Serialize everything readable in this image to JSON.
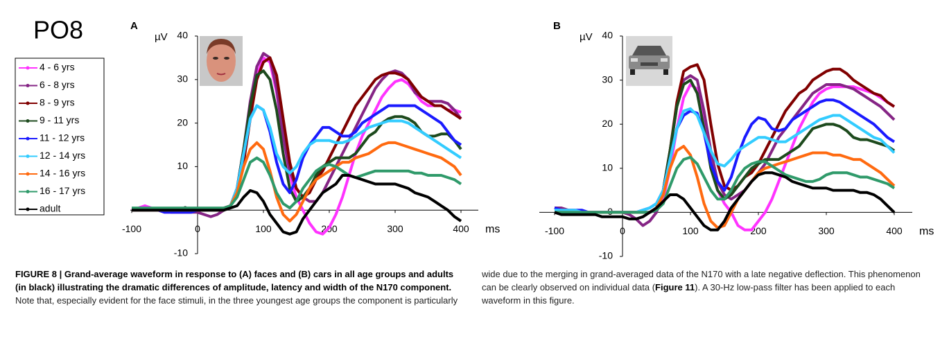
{
  "figure_label": "PO8",
  "chart_data": [
    {
      "type": "line",
      "title": "A",
      "y_label": "µV",
      "x_label": "ms",
      "x": [
        -100,
        -90,
        -80,
        -70,
        -60,
        -50,
        -40,
        -30,
        -20,
        -10,
        0,
        10,
        20,
        30,
        40,
        50,
        60,
        70,
        80,
        90,
        100,
        110,
        120,
        130,
        140,
        150,
        160,
        170,
        180,
        190,
        200,
        210,
        220,
        230,
        240,
        250,
        260,
        270,
        280,
        290,
        300,
        310,
        320,
        330,
        340,
        350,
        360,
        370,
        380,
        390,
        400
      ],
      "xlim": [
        -100,
        400
      ],
      "xticks": [
        -100,
        0,
        100,
        200,
        300,
        400
      ],
      "ylim": [
        -10,
        40
      ],
      "yticks": [
        -10,
        0,
        10,
        20,
        30,
        40
      ],
      "series": [
        {
          "name": "4 - 6 yrs",
          "color": "#ff33ff",
          "values": [
            0,
            0.5,
            1,
            0.5,
            0,
            -0.5,
            -0.5,
            -0.5,
            -0.5,
            -0.5,
            0,
            0,
            0,
            0,
            0.5,
            1,
            4,
            12,
            22,
            31,
            35,
            34,
            27,
            17,
            8,
            3,
            0,
            -3,
            -5,
            -5.5,
            -4,
            -1,
            3,
            8,
            13,
            17,
            20,
            23,
            26,
            28,
            29.5,
            30,
            29,
            27,
            25,
            24,
            24,
            24,
            23,
            23,
            22.5
          ]
        },
        {
          "name": "6 - 8 yrs",
          "color": "#852585",
          "values": [
            0,
            0,
            0,
            0,
            0,
            0,
            -0.5,
            -0.5,
            -0.5,
            -0.5,
            -0.5,
            -1,
            -1.5,
            -1,
            0,
            1,
            5,
            14,
            25,
            33,
            36,
            35,
            28,
            17,
            9,
            5,
            3,
            2,
            2,
            4,
            7,
            10,
            13,
            16,
            19,
            22,
            25,
            28,
            30,
            31.5,
            32,
            31.5,
            30,
            27,
            26,
            25,
            25,
            25,
            24.5,
            23,
            21
          ]
        },
        {
          "name": "8 - 9 yrs",
          "color": "#800000",
          "values": [
            0,
            0,
            0,
            0,
            0,
            0,
            0,
            0,
            0,
            0,
            0,
            0,
            0,
            0,
            0.5,
            1,
            4,
            11,
            21,
            30,
            34,
            35,
            31,
            21,
            11,
            5,
            3,
            4,
            7,
            9,
            12,
            15,
            18,
            21,
            24,
            26,
            28,
            30,
            31,
            31.5,
            31.5,
            31,
            30,
            28,
            26,
            25,
            24,
            24,
            23,
            22,
            21
          ]
        },
        {
          "name": "9 - 11 yrs",
          "color": "#1d4a1d",
          "values": [
            0,
            0,
            0,
            0,
            0,
            0,
            0,
            0,
            0,
            0,
            0,
            0,
            0,
            0,
            0,
            1,
            5,
            14,
            24,
            31,
            32,
            30,
            23,
            13,
            5,
            2,
            3,
            5,
            8,
            10,
            11,
            12,
            12,
            12,
            13,
            15,
            17,
            18,
            20,
            21,
            21.5,
            21.5,
            21,
            20,
            18,
            17,
            17,
            17.5,
            17.5,
            16,
            14
          ]
        },
        {
          "name": "11 - 12 yrs",
          "color": "#1a1aff",
          "values": [
            0,
            0,
            0,
            0,
            0,
            -0.5,
            -0.5,
            -0.5,
            -0.5,
            -0.5,
            0,
            0,
            0,
            0,
            0,
            1,
            5,
            13,
            21,
            24,
            23,
            18,
            11,
            6,
            4,
            7,
            12,
            15,
            17,
            19,
            19,
            18,
            17,
            17,
            18,
            20,
            21,
            22,
            23,
            24,
            24,
            24,
            24,
            24,
            23,
            22,
            21,
            20,
            18,
            16,
            15
          ]
        },
        {
          "name": "12 - 14 yrs",
          "color": "#33ccff",
          "values": [
            0,
            0,
            0,
            0,
            0,
            0,
            0,
            0,
            0,
            0,
            0,
            0,
            0,
            0,
            0,
            1,
            5,
            13,
            21,
            24,
            23,
            19,
            13,
            10,
            8.5,
            10,
            13,
            15,
            16,
            16,
            16,
            15.5,
            15.5,
            16,
            17,
            18,
            19,
            19.5,
            20,
            20.5,
            20.5,
            20.5,
            20,
            19,
            18,
            17,
            16,
            15,
            14,
            13,
            12
          ]
        },
        {
          "name": "14 - 16 yrs",
          "color": "#ff6a10",
          "values": [
            0,
            0,
            0,
            0,
            0,
            0,
            0,
            0,
            0,
            0,
            0,
            0,
            0,
            0,
            0,
            1,
            4,
            10,
            14,
            15.5,
            14,
            9,
            3,
            -1,
            -2.5,
            -1,
            2,
            5,
            7,
            8,
            9,
            10,
            11,
            11,
            12,
            12.5,
            13,
            14,
            15,
            15.5,
            15.5,
            15,
            14.5,
            14,
            13.5,
            13,
            12.5,
            12,
            11,
            10,
            8
          ]
        },
        {
          "name": "16 - 17 yrs",
          "color": "#2f9a6a",
          "values": [
            0.5,
            0.5,
            0.5,
            0.5,
            0.5,
            0.5,
            0.5,
            0.5,
            0.5,
            0.5,
            0.5,
            0.5,
            0.5,
            0.5,
            0.5,
            1,
            3,
            7,
            11,
            12,
            11,
            8,
            4,
            1.5,
            0.5,
            2,
            5,
            7,
            9,
            10,
            10.5,
            10,
            9,
            8,
            7.5,
            8,
            8.5,
            9,
            9,
            9,
            9,
            9,
            9,
            8.5,
            8.5,
            8,
            8,
            8,
            7.5,
            7,
            6
          ]
        },
        {
          "name": "adult",
          "color": "#000000",
          "values": [
            0,
            0,
            0,
            0,
            0,
            0,
            0,
            0,
            0,
            0,
            0,
            0,
            0,
            0,
            0,
            0.5,
            1,
            3,
            4.5,
            4,
            2,
            -1,
            -3,
            -5,
            -5.5,
            -5,
            -2,
            0,
            2,
            4,
            5,
            6,
            8,
            8,
            7.5,
            7,
            6.5,
            6,
            6,
            6,
            6,
            5.5,
            5,
            4,
            3.5,
            3,
            2,
            1,
            0,
            -1.5,
            -2.5
          ]
        }
      ]
    },
    {
      "type": "line",
      "title": "B",
      "y_label": "µV",
      "x_label": "ms",
      "x": [
        -100,
        -90,
        -80,
        -70,
        -60,
        -50,
        -40,
        -30,
        -20,
        -10,
        0,
        10,
        20,
        30,
        40,
        50,
        60,
        70,
        80,
        90,
        100,
        110,
        120,
        130,
        140,
        150,
        160,
        170,
        180,
        190,
        200,
        210,
        220,
        230,
        240,
        250,
        260,
        270,
        280,
        290,
        300,
        310,
        320,
        330,
        340,
        350,
        360,
        370,
        380,
        390,
        400
      ],
      "xlim": [
        -100,
        400
      ],
      "xticks": [
        -100,
        0,
        100,
        200,
        300,
        400
      ],
      "ylim": [
        -10,
        40
      ],
      "yticks": [
        -10,
        0,
        10,
        20,
        30,
        40
      ],
      "series": [
        {
          "color": "#ff33ff",
          "values": [
            0.5,
            0.5,
            0.5,
            0,
            0,
            0,
            0,
            0,
            0,
            0,
            0,
            0,
            0,
            0,
            0,
            0.5,
            3,
            10,
            19,
            26,
            29,
            28,
            21,
            12,
            5,
            2,
            0,
            -3,
            -4,
            -4,
            -2,
            0,
            3,
            7,
            11,
            15,
            19,
            22,
            25,
            27,
            28,
            28.5,
            28.5,
            28.5,
            28.5,
            28,
            27.5,
            27,
            26,
            25,
            24
          ]
        },
        {
          "color": "#852585",
          "values": [
            1,
            1,
            0.5,
            0.5,
            0,
            0,
            0,
            0,
            0,
            0,
            0,
            -0.5,
            -1.5,
            -3,
            -2,
            0,
            5,
            14,
            24,
            30,
            31,
            30,
            23,
            14,
            7,
            4,
            3,
            4,
            5,
            7,
            9,
            11,
            14,
            17,
            19,
            21,
            23,
            25,
            27,
            28,
            29,
            29,
            29,
            28.5,
            28,
            27,
            26,
            25,
            24,
            22.5,
            21
          ]
        },
        {
          "color": "#800000",
          "values": [
            1,
            0.5,
            0.5,
            0,
            0,
            0,
            0,
            0,
            0,
            0,
            0,
            0,
            0,
            0,
            0,
            1,
            5,
            14,
            25,
            32,
            33,
            33.5,
            30,
            20,
            11,
            6,
            5,
            6,
            8,
            9,
            11,
            14,
            17,
            20,
            23,
            25,
            27,
            28,
            30,
            31,
            32,
            32.5,
            32.5,
            31.5,
            30,
            29,
            28,
            27,
            26.5,
            25,
            24
          ]
        },
        {
          "color": "#1d4a1d",
          "values": [
            0,
            0,
            0,
            0,
            0,
            0,
            0,
            0,
            0,
            0,
            0,
            0,
            0,
            0,
            0,
            1,
            5,
            14,
            24,
            29,
            30,
            27,
            19,
            10,
            5,
            3,
            4,
            6,
            8,
            10,
            11,
            12,
            12,
            12,
            13,
            14,
            15,
            17,
            19,
            19.5,
            20,
            20,
            19.5,
            18.5,
            17,
            16.5,
            16.5,
            16,
            15.5,
            15,
            14
          ]
        },
        {
          "color": "#1a1aff",
          "values": [
            1,
            0.5,
            0.5,
            0.5,
            0.5,
            0,
            0,
            0,
            0,
            0,
            0,
            0,
            0,
            0.5,
            1,
            2,
            5,
            12,
            19,
            22,
            23,
            22.5,
            18,
            11,
            7,
            5,
            8,
            13,
            17,
            20,
            21.5,
            21,
            19,
            18.5,
            19,
            21,
            22,
            23,
            24,
            25,
            25.5,
            25.5,
            25,
            24,
            23,
            22,
            21,
            20,
            18.5,
            17,
            16
          ]
        },
        {
          "color": "#33ccff",
          "values": [
            0.5,
            0.5,
            0.5,
            0.5,
            0,
            0,
            0,
            0,
            0,
            0,
            0,
            0,
            0,
            0.5,
            1,
            2,
            5,
            12,
            19,
            23,
            23.5,
            22,
            18,
            14,
            11,
            10.5,
            12,
            14,
            15,
            16,
            17,
            17,
            16.5,
            16,
            16,
            17,
            18,
            19,
            20,
            21,
            21.5,
            22,
            22,
            21,
            20,
            19,
            18,
            17,
            16.5,
            15,
            13.5
          ]
        },
        {
          "color": "#ff6a10",
          "values": [
            0,
            0,
            0,
            0,
            0,
            0,
            0,
            0,
            0,
            0,
            0,
            0,
            0,
            0,
            0,
            1,
            4,
            10,
            14,
            15,
            13,
            8,
            2,
            -2,
            -3.5,
            -3,
            0,
            3,
            5,
            7,
            9,
            10,
            10.5,
            11,
            11.5,
            12,
            12.5,
            13,
            13.5,
            13.5,
            13.5,
            13,
            13,
            12.5,
            12,
            12,
            11,
            10,
            9,
            7.5,
            6
          ]
        },
        {
          "color": "#2f9a6a",
          "values": [
            0,
            0,
            0,
            0,
            0,
            0,
            0,
            0,
            0,
            0,
            0,
            0,
            0,
            0,
            0,
            0.5,
            2,
            6,
            10,
            12,
            12.5,
            11,
            8,
            5,
            3,
            3,
            5,
            8,
            10,
            11,
            11.5,
            11.5,
            10.5,
            9.5,
            8.5,
            8,
            7.5,
            7,
            7,
            7.5,
            8.5,
            9,
            9,
            9,
            8.5,
            8,
            8,
            7.5,
            7,
            6.5,
            5.5
          ]
        },
        {
          "color": "#000000",
          "values": [
            0,
            -0.5,
            -0.5,
            -0.5,
            -0.5,
            -0.5,
            -0.5,
            -1,
            -1,
            -1,
            -1,
            -1.5,
            -1.5,
            -1,
            0,
            1,
            2.5,
            4,
            4,
            3,
            1,
            -1,
            -3,
            -4,
            -4,
            -2,
            1,
            3,
            5,
            7,
            8.5,
            9,
            9,
            8.5,
            8,
            7,
            6.5,
            6,
            5.5,
            5.5,
            5.5,
            5,
            5,
            5,
            5,
            4.5,
            4.5,
            4,
            3,
            1.5,
            0
          ]
        }
      ]
    }
  ],
  "caption": {
    "heading": "FIGURE 8 | Grand-average waveform in response to (A) faces and (B) cars in all age groups and adults (in black) illustrating the dramatic differences of amplitude, latency and width of the N170 component.",
    "text_1": " Note that, especially evident for the face stimuli, in the three youngest age groups the component is particularly wide due to the merging in grand-averaged data of the N170 with a late negative deflection. This phenomenon can be clearly observed on individual data (",
    "figure_ref": "Figure 11",
    "text_2": "). A 30-Hz low-pass filter has been applied to each waveform in this figure."
  }
}
